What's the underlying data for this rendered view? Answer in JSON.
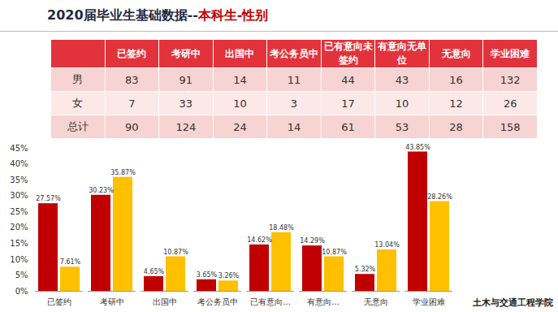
{
  "header": {
    "title": "2020届毕业生基础数据--",
    "title_highlight": "本科生-性别"
  },
  "table": {
    "columns": [
      "",
      "已签约",
      "考研中",
      "出国中",
      "考公务员中",
      "已有意向未签约",
      "有意向无单位",
      "无意向",
      "学业困难"
    ],
    "rows": [
      [
        "男",
        83,
        91,
        14,
        11,
        44,
        43,
        16,
        132
      ],
      [
        "女",
        7,
        33,
        10,
        3,
        17,
        10,
        12,
        26
      ],
      [
        "总计",
        90,
        124,
        24,
        14,
        61,
        53,
        28,
        158
      ]
    ]
  },
  "chart_data": {
    "type": "bar",
    "categories": [
      "已签约",
      "考研中",
      "出国中",
      "考公务员中",
      "已有意向…",
      "有意向…",
      "无意向",
      "学业困难"
    ],
    "series": [
      {
        "color": "#c00000",
        "values": [
          27.57,
          30.23,
          4.65,
          3.65,
          14.62,
          14.29,
          5.32,
          43.85
        ],
        "value_labels": [
          "27.57%",
          "30.23%",
          "4.65%",
          "3.65%",
          "14.62%",
          "14.29%",
          "5.32%",
          "43.85%"
        ]
      },
      {
        "color": "#ffc000",
        "values": [
          7.61,
          35.87,
          10.87,
          3.26,
          18.48,
          10.87,
          13.04,
          28.26
        ],
        "value_labels": [
          "7.61%",
          "35.87%",
          "10.87%",
          "3.26%",
          "18.48%",
          "10.87%",
          "13.04%",
          "28.26%"
        ]
      }
    ],
    "ylim": [
      0,
      45
    ],
    "yticks": [
      {
        "value": 0,
        "label": "0%"
      },
      {
        "value": 5,
        "label": "5%"
      },
      {
        "value": 10,
        "label": "10%"
      },
      {
        "value": 15,
        "label": "15%"
      },
      {
        "value": 20,
        "label": "20%"
      },
      {
        "value": 25,
        "label": "25%"
      },
      {
        "value": 30,
        "label": "30%"
      },
      {
        "value": 35,
        "label": "35%"
      },
      {
        "value": 40,
        "label": "40%"
      },
      {
        "value": 45,
        "label": "45%"
      }
    ],
    "grid": false,
    "data_labels": true
  },
  "footer": {
    "school": "土木与交通工程学院"
  }
}
